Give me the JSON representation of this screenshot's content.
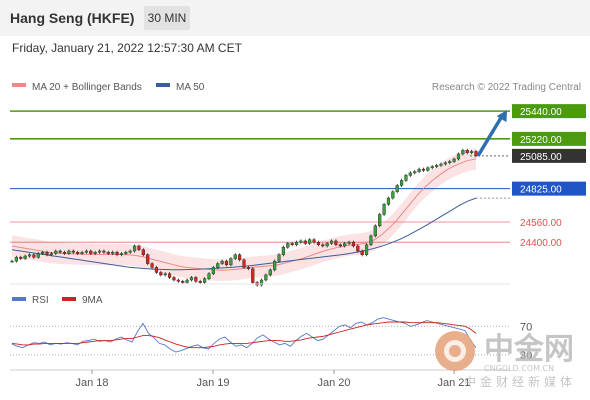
{
  "header": {
    "title": "Hang Seng (HKFE)",
    "timeframe": "30 MIN",
    "datetime": "Friday, January 21, 2022 12:57:30 AM CET"
  },
  "legend": {
    "ma20_label": "MA 20 + Bollinger Bands",
    "ma50_label": "MA 50",
    "credit": "Research © 2022 Trading Central",
    "ma20_color": "#e88",
    "ma50_color": "#3a5d9c"
  },
  "rsi_legend": {
    "rsi_label": "RSI",
    "ma_label": "9MA",
    "rsi_color": "#5577cc",
    "ma_color": "#cc2222"
  },
  "watermark": {
    "name": "中金网",
    "domain": "CNGOLD.COM.CN",
    "subtitle": "中金财经新媒体"
  },
  "chart_data": {
    "type": "candlestick",
    "x_ticks": [
      "Jan 18",
      "Jan 19",
      "Jan 20",
      "Jan 21"
    ],
    "ylim": [
      24100,
      25560
    ],
    "levels": [
      {
        "value": 25440,
        "label": "25440.00",
        "kind": "resistance",
        "color": "#4c9a0e"
      },
      {
        "value": 25220,
        "label": "25220.00",
        "kind": "resistance",
        "color": "#4c9a0e"
      },
      {
        "value": 25085,
        "label": "25085.00",
        "kind": "last",
        "color": "#333333"
      },
      {
        "value": 24825,
        "label": "24825.00",
        "kind": "pivot",
        "color": "#1f55c7"
      },
      {
        "value": 24560,
        "label": "24560.00",
        "kind": "support",
        "color": "#e05050"
      },
      {
        "value": 24400,
        "label": "24400.00",
        "kind": "support",
        "color": "#e05050"
      }
    ],
    "arrow": {
      "from": 25085,
      "to": 25440,
      "direction": "up"
    },
    "close_path": [
      24250,
      24280,
      24270,
      24290,
      24300,
      24280,
      24310,
      24320,
      24300,
      24310,
      24330,
      24320,
      24310,
      24330,
      24320,
      24310,
      24320,
      24330,
      24310,
      24320,
      24330,
      24320,
      24310,
      24320,
      24300,
      24310,
      24320,
      24330,
      24370,
      24340,
      24300,
      24230,
      24200,
      24160,
      24140,
      24150,
      24120,
      24100,
      24090,
      24080,
      24100,
      24120,
      24090,
      24080,
      24110,
      24150,
      24200,
      24230,
      24250,
      24220,
      24270,
      24300,
      24260,
      24200,
      24190,
      24080,
      24060,
      24100,
      24140,
      24180,
      24250,
      24300,
      24360,
      24390,
      24380,
      24400,
      24410,
      24390,
      24420,
      24400,
      24380,
      24370,
      24390,
      24410,
      24380,
      24370,
      24390,
      24400,
      24370,
      24330,
      24300,
      24380,
      24450,
      24530,
      24620,
      24700,
      24750,
      24800,
      24850,
      24890,
      24930,
      24950,
      24960,
      24980,
      24970,
      24990,
      25000,
      25010,
      25020,
      25030,
      25040,
      25060,
      25100,
      25130,
      25110,
      25120,
      25085
    ],
    "ma20": [
      24370,
      24360,
      24350,
      24340,
      24330,
      24320,
      24315,
      24310,
      24308,
      24306,
      24305,
      24304,
      24303,
      24303,
      24302,
      24302,
      24300,
      24295,
      24285,
      24270,
      24255,
      24240,
      24225,
      24210,
      24200,
      24195,
      24190,
      24185,
      24180,
      24178,
      24180,
      24185,
      24192,
      24200,
      24205,
      24210,
      24215,
      24225,
      24240,
      24255,
      24270,
      24290,
      24310,
      24330,
      24345,
      24360,
      24372,
      24380,
      24385,
      24395,
      24420,
      24460,
      24510,
      24570,
      24640,
      24710,
      24780,
      24840,
      24890,
      24935,
      24975,
      25005,
      25030,
      25050,
      25060
    ],
    "ma50": [
      24340,
      24330,
      24320,
      24310,
      24300,
      24290,
      24280,
      24270,
      24260,
      24250,
      24240,
      24230,
      24220,
      24210,
      24200,
      24195,
      24190,
      24186,
      24183,
      24182,
      24182,
      24183,
      24185,
      24188,
      24192,
      24196,
      24200,
      24206,
      24212,
      24220,
      24228,
      24236,
      24244,
      24252,
      24260,
      24268,
      24276,
      24284,
      24292,
      24300,
      24310,
      24322,
      24336,
      24352,
      24372,
      24396,
      24424,
      24456,
      24492,
      24530,
      24570,
      24610,
      24650,
      24690,
      24725,
      24750
    ],
    "rsi": [
      45,
      42,
      40,
      44,
      47,
      46,
      48,
      44,
      46,
      45,
      47,
      46,
      44,
      49,
      50,
      52,
      49,
      50,
      48,
      52,
      55,
      51,
      48,
      63,
      74,
      60,
      54,
      46,
      44,
      38,
      34,
      36,
      39,
      42,
      44,
      40,
      38,
      46,
      52,
      55,
      48,
      42,
      44,
      40,
      46,
      54,
      58,
      52,
      48,
      44,
      46,
      42,
      50,
      56,
      60,
      55,
      50,
      52,
      58,
      64,
      70,
      72,
      68,
      74,
      76,
      72,
      75,
      80,
      82,
      80,
      78,
      76,
      74,
      70,
      72,
      75,
      78,
      76,
      74,
      72,
      70,
      68,
      66,
      64,
      50,
      40
    ],
    "rsi_ma": [
      46,
      45,
      44,
      44,
      45,
      45,
      46,
      46,
      46,
      46,
      46,
      46,
      46,
      47,
      48,
      49,
      50,
      50,
      50,
      51,
      52,
      53,
      53,
      55,
      57,
      57,
      56,
      54,
      51,
      48,
      45,
      43,
      41,
      40,
      40,
      40,
      41,
      42,
      44,
      45,
      46,
      46,
      46,
      46,
      47,
      48,
      49,
      50,
      50,
      50,
      49,
      49,
      50,
      51,
      53,
      54,
      55,
      56,
      58,
      60,
      62,
      64,
      66,
      68,
      70,
      72,
      73,
      74,
      75,
      76,
      76,
      76,
      76,
      75,
      75,
      75,
      75,
      75,
      75,
      74,
      73,
      72,
      71,
      70,
      66,
      60
    ],
    "rsi_levels": [
      {
        "value": 70,
        "label": "70"
      },
      {
        "value": 30,
        "label": "30"
      }
    ]
  }
}
